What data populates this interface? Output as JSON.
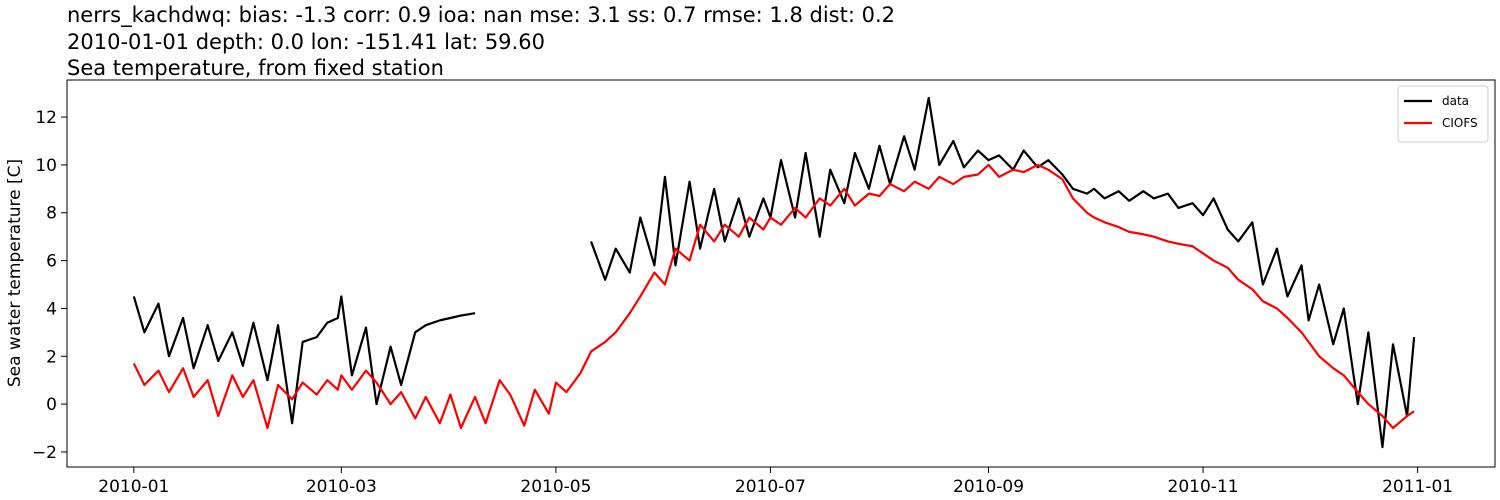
{
  "chart_data": {
    "type": "line",
    "title": [
      "nerrs_kachdwq: bias: -1.3  corr: 0.9  ioa: nan  mse: 3.1  ss: 0.7  rmse: 1.8  dist: 0.2",
      "2010-01-01 depth: 0.0 lon: -151.41 lat: 59.60",
      "Sea temperature, from fixed station"
    ],
    "y_label": "Sea water temperature [C]",
    "legend": "upper right",
    "x": [
      "2010-01-01",
      "2010-01-04",
      "2010-01-08",
      "2010-01-11",
      "2010-01-15",
      "2010-01-18",
      "2010-01-22",
      "2010-01-25",
      "2010-01-29",
      "2010-02-01",
      "2010-02-04",
      "2010-02-08",
      "2010-02-11",
      "2010-02-15",
      "2010-02-18",
      "2010-02-22",
      "2010-02-25",
      "2010-02-28",
      "2010-03-01",
      "2010-03-04",
      "2010-03-08",
      "2010-03-11",
      "2010-03-15",
      "2010-03-18",
      "2010-03-22",
      "2010-03-25",
      "2010-03-29",
      "2010-04-01",
      "2010-04-04",
      "2010-04-08",
      "2010-04-11",
      "2010-04-15",
      "2010-04-18",
      "2010-04-22",
      "2010-04-25",
      "2010-04-29",
      "2010-05-01",
      "2010-05-04",
      "2010-05-08",
      "2010-05-11",
      "2010-05-15",
      "2010-05-18",
      "2010-05-22",
      "2010-05-25",
      "2010-05-29",
      "2010-06-01",
      "2010-06-04",
      "2010-06-08",
      "2010-06-11",
      "2010-06-15",
      "2010-06-18",
      "2010-06-22",
      "2010-06-25",
      "2010-06-29",
      "2010-07-01",
      "2010-07-04",
      "2010-07-08",
      "2010-07-11",
      "2010-07-15",
      "2010-07-18",
      "2010-07-22",
      "2010-07-25",
      "2010-07-29",
      "2010-08-01",
      "2010-08-04",
      "2010-08-08",
      "2010-08-11",
      "2010-08-15",
      "2010-08-18",
      "2010-08-22",
      "2010-08-25",
      "2010-08-29",
      "2010-09-01",
      "2010-09-04",
      "2010-09-08",
      "2010-09-11",
      "2010-09-15",
      "2010-09-18",
      "2010-09-22",
      "2010-09-25",
      "2010-09-29",
      "2010-10-01",
      "2010-10-04",
      "2010-10-08",
      "2010-10-11",
      "2010-10-15",
      "2010-10-18",
      "2010-10-22",
      "2010-10-25",
      "2010-10-29",
      "2010-11-01",
      "2010-11-04",
      "2010-11-08",
      "2010-11-11",
      "2010-11-15",
      "2010-11-18",
      "2010-11-22",
      "2010-11-25",
      "2010-11-29",
      "2010-12-01",
      "2010-12-04",
      "2010-12-08",
      "2010-12-11",
      "2010-12-15",
      "2010-12-18",
      "2010-12-22",
      "2010-12-25",
      "2010-12-29",
      "2010-12-31"
    ],
    "series": [
      {
        "name": "data",
        "color": "#000000",
        "values": [
          4.5,
          3.0,
          4.2,
          2.0,
          3.6,
          1.5,
          3.3,
          1.8,
          3.0,
          1.6,
          3.4,
          1.0,
          3.3,
          -0.8,
          2.6,
          2.8,
          3.4,
          3.6,
          4.5,
          1.2,
          3.2,
          0.0,
          2.4,
          0.8,
          3.0,
          3.3,
          3.5,
          3.6,
          3.7,
          3.8,
          null,
          null,
          null,
          null,
          null,
          null,
          null,
          null,
          null,
          6.8,
          5.2,
          6.5,
          5.5,
          7.8,
          5.8,
          9.5,
          5.8,
          9.3,
          6.5,
          9.0,
          6.8,
          8.6,
          7.0,
          8.6,
          7.8,
          10.2,
          7.8,
          10.5,
          7.0,
          9.8,
          8.4,
          10.5,
          9.0,
          10.8,
          9.2,
          11.2,
          9.8,
          12.8,
          10.0,
          11.0,
          9.9,
          10.6,
          10.2,
          10.4,
          9.8,
          10.6,
          9.9,
          10.2,
          9.6,
          9.0,
          8.8,
          9.0,
          8.6,
          8.9,
          8.5,
          8.9,
          8.6,
          8.8,
          8.2,
          8.4,
          7.9,
          8.6,
          7.3,
          6.8,
          7.6,
          5.0,
          6.5,
          4.5,
          5.8,
          3.5,
          5.0,
          2.5,
          4.0,
          0.0,
          3.0,
          -1.8,
          2.5,
          -0.5,
          2.8
        ]
      },
      {
        "name": "CIOFS",
        "color": "#ff0000",
        "values": [
          1.7,
          0.8,
          1.4,
          0.5,
          1.5,
          0.3,
          1.0,
          -0.5,
          1.2,
          0.3,
          1.0,
          -1.0,
          0.8,
          0.2,
          0.9,
          0.4,
          1.0,
          0.6,
          1.2,
          0.6,
          1.4,
          0.9,
          0.0,
          0.5,
          -0.6,
          0.3,
          -0.8,
          0.4,
          -1.0,
          0.3,
          -0.8,
          1.0,
          0.4,
          -0.9,
          0.6,
          -0.4,
          0.9,
          0.5,
          1.3,
          2.2,
          2.6,
          3.0,
          3.8,
          4.5,
          5.5,
          5.0,
          6.5,
          6.0,
          7.5,
          6.8,
          7.5,
          7.0,
          7.8,
          7.3,
          7.8,
          7.5,
          8.2,
          7.8,
          8.6,
          8.3,
          9.0,
          8.3,
          8.8,
          8.7,
          9.2,
          8.9,
          9.3,
          9.0,
          9.5,
          9.2,
          9.5,
          9.6,
          10.0,
          9.5,
          9.8,
          9.7,
          10.0,
          9.8,
          9.4,
          8.6,
          8.0,
          7.8,
          7.6,
          7.4,
          7.2,
          7.1,
          7.0,
          6.8,
          6.7,
          6.6,
          6.3,
          6.0,
          5.7,
          5.2,
          4.8,
          4.3,
          4.0,
          3.6,
          3.0,
          2.6,
          2.0,
          1.5,
          1.2,
          0.5,
          0.0,
          -0.5,
          -1.0,
          -0.5,
          -0.3
        ]
      }
    ],
    "xlim": [
      "2009-12-13",
      "2011-01-23"
    ],
    "xticks": [
      {
        "value": "2010-01-01",
        "label": "2010-01"
      },
      {
        "value": "2010-03-01",
        "label": "2010-03"
      },
      {
        "value": "2010-05-01",
        "label": "2010-05"
      },
      {
        "value": "2010-07-01",
        "label": "2010-07"
      },
      {
        "value": "2010-09-01",
        "label": "2010-09"
      },
      {
        "value": "2010-11-01",
        "label": "2010-11"
      },
      {
        "value": "2011-01-01",
        "label": "2011-01"
      }
    ],
    "ylim": [
      -2.63,
      13.55
    ],
    "yticks": [
      {
        "value": -2,
        "label": "−2"
      },
      0,
      2,
      4,
      6,
      8,
      10,
      12
    ]
  }
}
